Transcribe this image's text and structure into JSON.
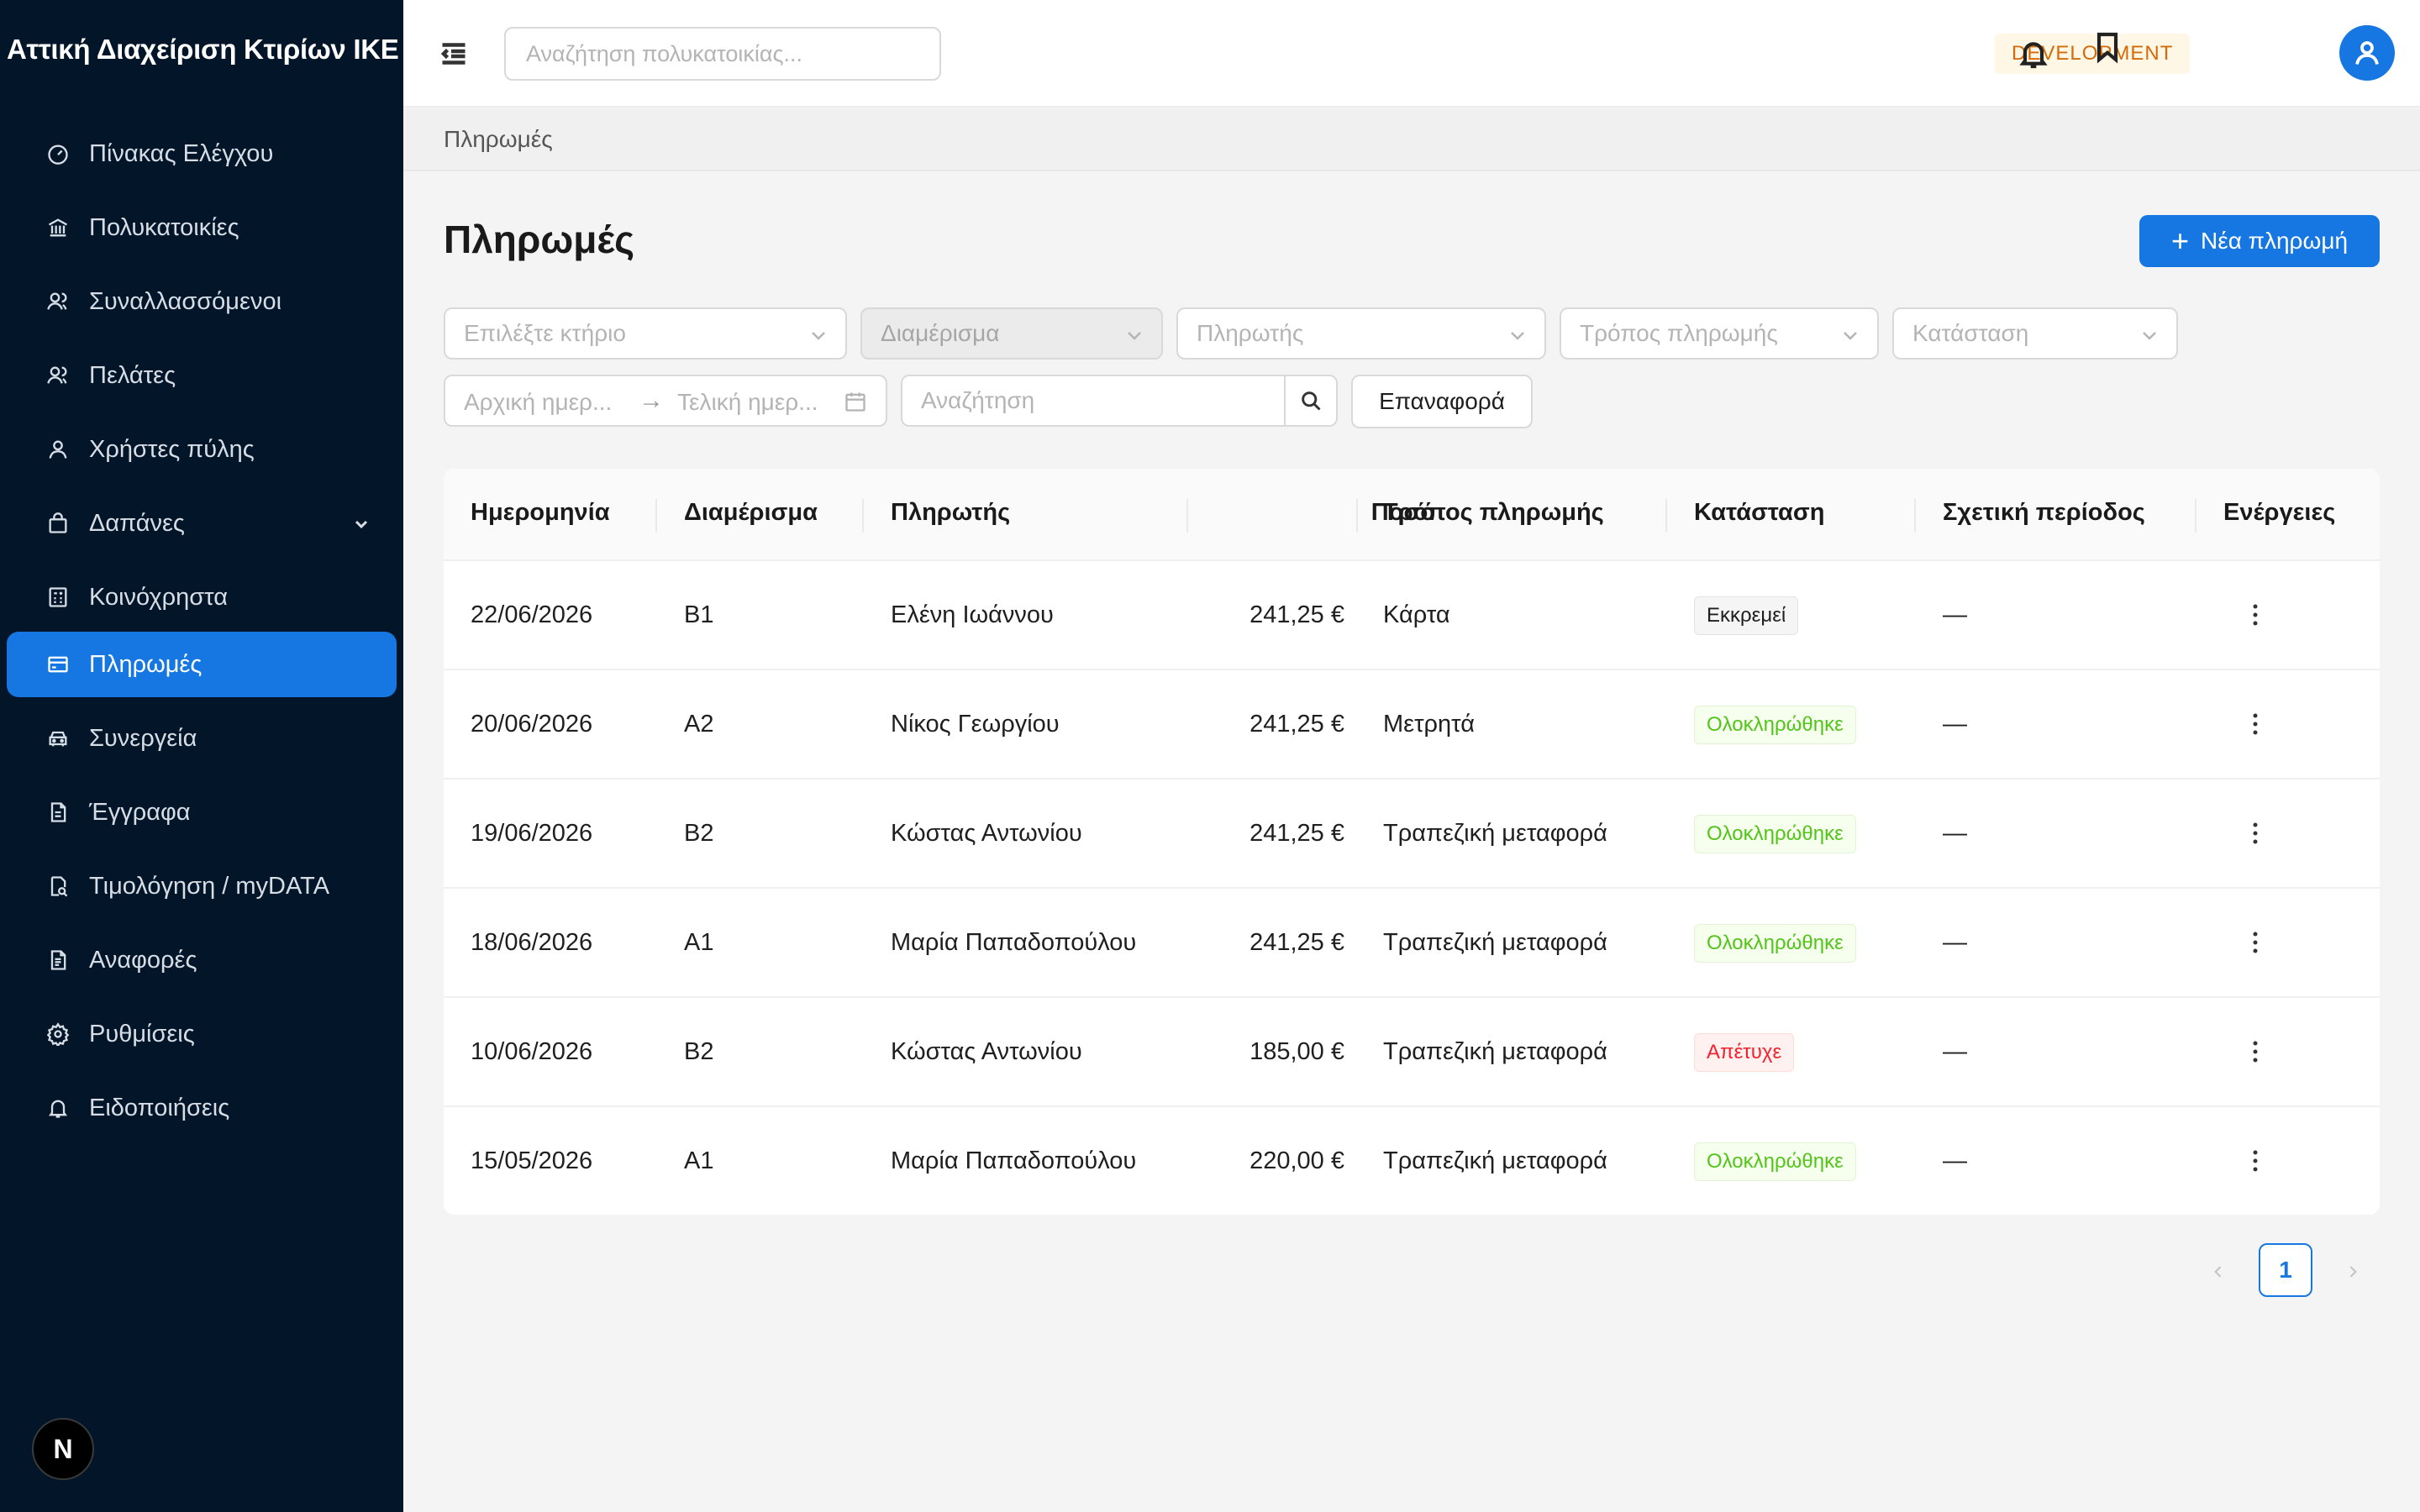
{
  "app": {
    "brand": "Αττική Διαχείριση Κτιρίων ΙΚΕ",
    "search_placeholder": "Αναζήτηση πολυκατοικίας...",
    "env_badge": "DEVELOPMENT",
    "accent_color": "#1677e2",
    "sidebar_bg": "#021529"
  },
  "sidebar": {
    "items": [
      {
        "label": "Πίνακας Ελέγχου",
        "icon": "dashboard-icon"
      },
      {
        "label": "Πολυκατοικίες",
        "icon": "bank-icon"
      },
      {
        "label": "Συναλλασσόμενοι",
        "icon": "users-icon"
      },
      {
        "label": "Πελάτες",
        "icon": "users-icon"
      },
      {
        "label": "Χρήστες πύλης",
        "icon": "user-icon"
      },
      {
        "label": "Δαπάνες",
        "icon": "shopping-bag-icon"
      },
      {
        "label": "Κοινόχρηστα",
        "icon": "calculator-icon"
      },
      {
        "label": "Πληρωμές",
        "icon": "credit-card-icon"
      },
      {
        "label": "Συνεργεία",
        "icon": "car-icon"
      },
      {
        "label": "Έγγραφα",
        "icon": "file-icon"
      },
      {
        "label": "Τιμολόγηση / myDATA",
        "icon": "file-search-icon"
      },
      {
        "label": "Αναφορές",
        "icon": "file-text-icon"
      },
      {
        "label": "Ρυθμίσεις",
        "icon": "gear-icon"
      },
      {
        "label": "Ειδοποιήσεις",
        "icon": "bell-icon"
      }
    ],
    "footer_badge": "N"
  },
  "breadcrumb": "Πληρωμές",
  "page": {
    "title": "Πληρωμές",
    "new_button": "Νέα πληρωμή"
  },
  "filters": {
    "building": "Επιλέξτε κτήριο",
    "apartment": "Διαμέρισμα",
    "payer": "Πληρωτής",
    "method": "Τρόπος πληρωμής",
    "status": "Κατάσταση",
    "date_start": "Αρχική ημερ...",
    "date_end": "Τελική ημερ...",
    "date_arrow": "→",
    "search_placeholder": "Αναζήτηση",
    "reset": "Επαναφορά"
  },
  "table": {
    "columns": [
      "Ημερομηνία",
      "Διαμέρισμα",
      "Πληρωτής",
      "Ποσό",
      "Τρόπος πληρωμής",
      "Κατάσταση",
      "Σχετική περίοδος",
      "Ενέργειες"
    ],
    "rows": [
      {
        "date": "22/06/2026",
        "apt": "Β1",
        "payer": "Ελένη Ιωάννου",
        "amount": "241,25 €",
        "method": "Κάρτα",
        "status": "Εκκρεμεί",
        "status_type": "pending",
        "period": "—"
      },
      {
        "date": "20/06/2026",
        "apt": "Α2",
        "payer": "Νίκος Γεωργίου",
        "amount": "241,25 €",
        "method": "Μετρητά",
        "status": "Ολοκληρώθηκε",
        "status_type": "done",
        "period": "—"
      },
      {
        "date": "19/06/2026",
        "apt": "Β2",
        "payer": "Κώστας Αντωνίου",
        "amount": "241,25 €",
        "method": "Τραπεζική μεταφορά",
        "status": "Ολοκληρώθηκε",
        "status_type": "done",
        "period": "—"
      },
      {
        "date": "18/06/2026",
        "apt": "Α1",
        "payer": "Μαρία Παπαδοπούλου",
        "amount": "241,25 €",
        "method": "Τραπεζική μεταφορά",
        "status": "Ολοκληρώθηκε",
        "status_type": "done",
        "period": "—"
      },
      {
        "date": "10/06/2026",
        "apt": "Β2",
        "payer": "Κώστας Αντωνίου",
        "amount": "185,00 €",
        "method": "Τραπεζική μεταφορά",
        "status": "Απέτυχε",
        "status_type": "failed",
        "period": "—"
      },
      {
        "date": "15/05/2026",
        "apt": "Α1",
        "payer": "Μαρία Παπαδοπούλου",
        "amount": "220,00 €",
        "method": "Τραπεζική μεταφορά",
        "status": "Ολοκληρώθηκε",
        "status_type": "done",
        "period": "—"
      }
    ]
  },
  "pagination": {
    "current": "1"
  }
}
